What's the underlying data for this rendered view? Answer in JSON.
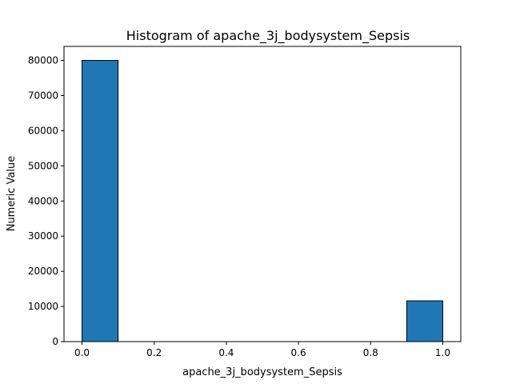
{
  "chart_data": {
    "type": "bar",
    "title": "Histogram of apache_3j_bodysystem_Sepsis",
    "xlabel": "apache_3j_bodysystem_Sepsis",
    "ylabel": "Numeric Value",
    "bins": [
      {
        "x0": 0.0,
        "x1": 0.1,
        "count": 80000
      },
      {
        "x0": 0.1,
        "x1": 0.2,
        "count": 0
      },
      {
        "x0": 0.2,
        "x1": 0.3,
        "count": 0
      },
      {
        "x0": 0.3,
        "x1": 0.4,
        "count": 0
      },
      {
        "x0": 0.4,
        "x1": 0.5,
        "count": 0
      },
      {
        "x0": 0.5,
        "x1": 0.6,
        "count": 0
      },
      {
        "x0": 0.6,
        "x1": 0.7,
        "count": 0
      },
      {
        "x0": 0.7,
        "x1": 0.8,
        "count": 0
      },
      {
        "x0": 0.8,
        "x1": 0.9,
        "count": 0
      },
      {
        "x0": 0.9,
        "x1": 1.0,
        "count": 11600
      }
    ],
    "xlim": [
      -0.05,
      1.05
    ],
    "ylim": [
      0,
      84000
    ],
    "xticks": [
      0.0,
      0.2,
      0.4,
      0.6,
      0.8,
      1.0
    ],
    "xtick_labels": [
      "0.0",
      "0.2",
      "0.4",
      "0.6",
      "0.8",
      "1.0"
    ],
    "yticks": [
      0,
      10000,
      20000,
      30000,
      40000,
      50000,
      60000,
      70000,
      80000
    ],
    "ytick_labels": [
      "0",
      "10000",
      "20000",
      "30000",
      "40000",
      "50000",
      "60000",
      "70000",
      "80000"
    ],
    "grid": false,
    "bar_color": "#1f77b4",
    "edge_color": "#000000"
  }
}
